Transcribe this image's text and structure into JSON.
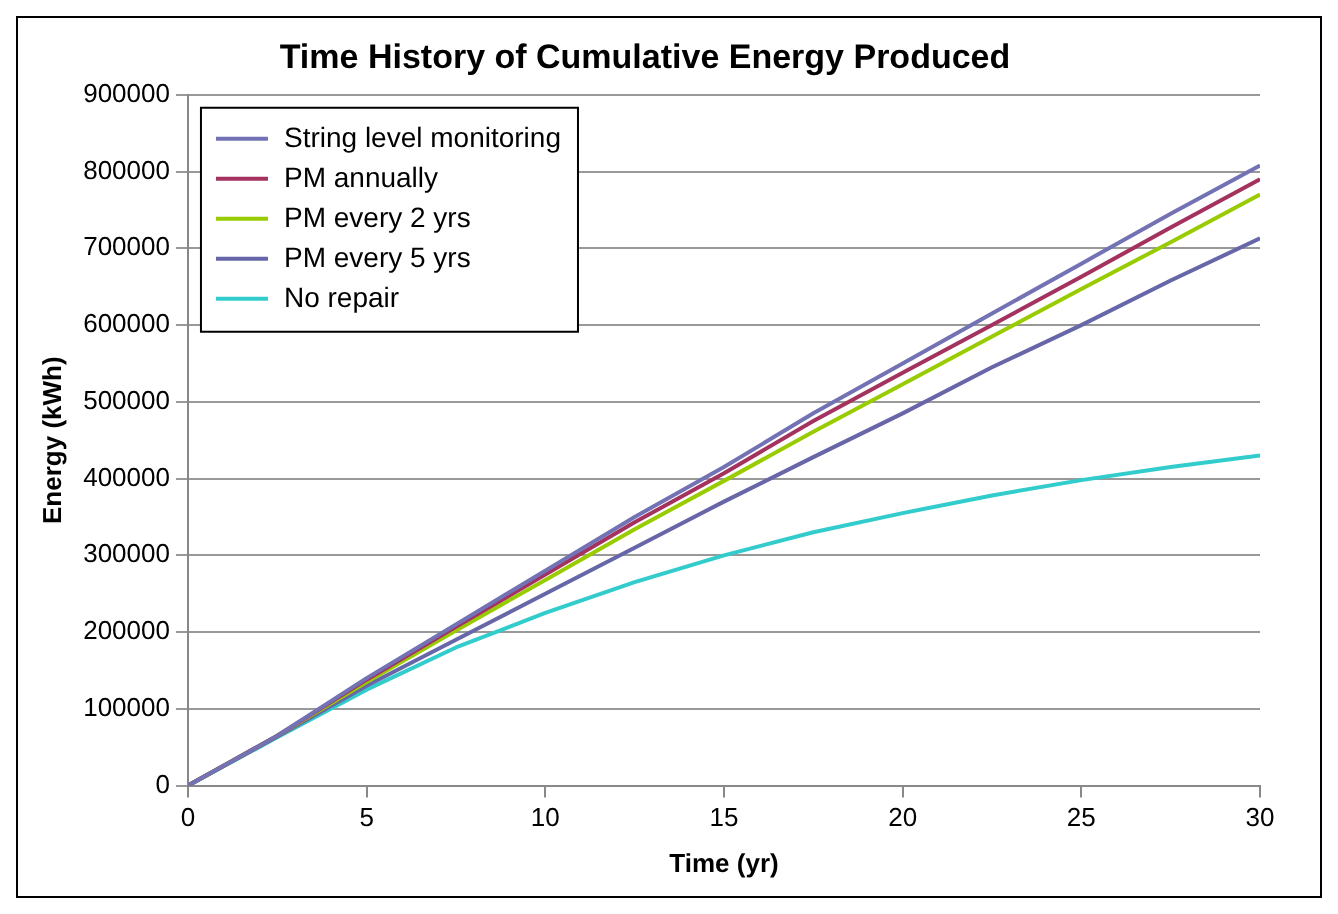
{
  "chart_data": {
    "type": "line",
    "title": "Time History of Cumulative Energy Produced",
    "xlabel": "Time (yr)",
    "ylabel": "Energy (kWh)",
    "x": [
      0,
      2.5,
      5,
      7.5,
      10,
      12.5,
      15,
      17.5,
      20,
      22.5,
      25,
      27.5,
      30
    ],
    "series": [
      {
        "name": "String level monitoring",
        "color": "#7272b4",
        "values": [
          0,
          65000,
          140000,
          210000,
          280000,
          350000,
          415000,
          485000,
          550000,
          615000,
          680000,
          745000,
          808000
        ]
      },
      {
        "name": "PM annually",
        "color": "#a3325f",
        "values": [
          0,
          65000,
          138000,
          207000,
          275000,
          343000,
          407000,
          475000,
          538000,
          600000,
          663000,
          727000,
          790000
        ]
      },
      {
        "name": "PM every 2 yrs",
        "color": "#99cc00",
        "values": [
          0,
          65000,
          135000,
          202000,
          268000,
          334000,
          397000,
          461000,
          523000,
          585000,
          647000,
          708000,
          770000
        ]
      },
      {
        "name": "PM every 5 yrs",
        "color": "#6666a8",
        "values": [
          0,
          64000,
          130000,
          190000,
          250000,
          310000,
          370000,
          428000,
          485000,
          545000,
          600000,
          658000,
          713000
        ]
      },
      {
        "name": "No repair",
        "color": "#33cccc",
        "values": [
          0,
          63000,
          125000,
          180000,
          225000,
          265000,
          300000,
          330000,
          355000,
          378000,
          398000,
          415000,
          430000
        ]
      }
    ],
    "xlim": [
      0,
      30
    ],
    "xticks": [
      0,
      5,
      10,
      15,
      20,
      25,
      30
    ],
    "ylim": [
      0,
      900000
    ],
    "yticks": [
      0,
      100000,
      200000,
      300000,
      400000,
      500000,
      600000,
      700000,
      800000,
      900000
    ],
    "grid": "y",
    "legend": "top left",
    "marker": "none",
    "line_style": "solid"
  }
}
